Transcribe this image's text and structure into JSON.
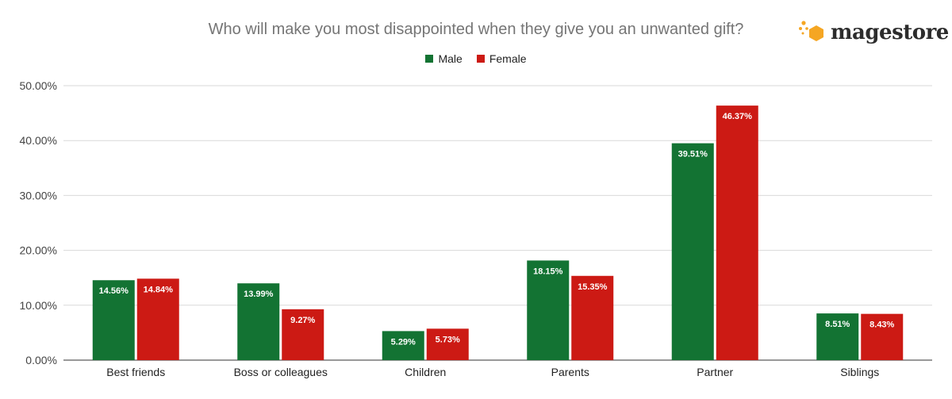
{
  "title": "Who will make you most disappointed when they give you an unwanted gift?",
  "logo": {
    "text": "magestore",
    "icon": "hexagon-dots-icon",
    "color": "#F5A623"
  },
  "chart_data": {
    "type": "bar",
    "categories": [
      "Best friends",
      "Boss or colleagues",
      "Children",
      "Parents",
      "Partner",
      "Siblings"
    ],
    "series": [
      {
        "name": "Male",
        "color": "#137333",
        "values": [
          14.56,
          13.99,
          5.29,
          18.15,
          39.51,
          8.51
        ],
        "labels": [
          "14.56%",
          "13.99%",
          "5.29%",
          "18.15%",
          "39.51%",
          "8.51%"
        ]
      },
      {
        "name": "Female",
        "color": "#CC1A14",
        "values": [
          14.84,
          9.27,
          5.73,
          15.35,
          46.37,
          8.43
        ],
        "labels": [
          "14.84%",
          "9.27%",
          "5.73%",
          "15.35%",
          "46.37%",
          "8.43%"
        ]
      }
    ],
    "yticks": [
      "0.00%",
      "10.00%",
      "20.00%",
      "30.00%",
      "40.00%",
      "50.00%"
    ],
    "ylim": [
      0,
      50
    ],
    "grid": true,
    "legend_position": "top-center"
  }
}
